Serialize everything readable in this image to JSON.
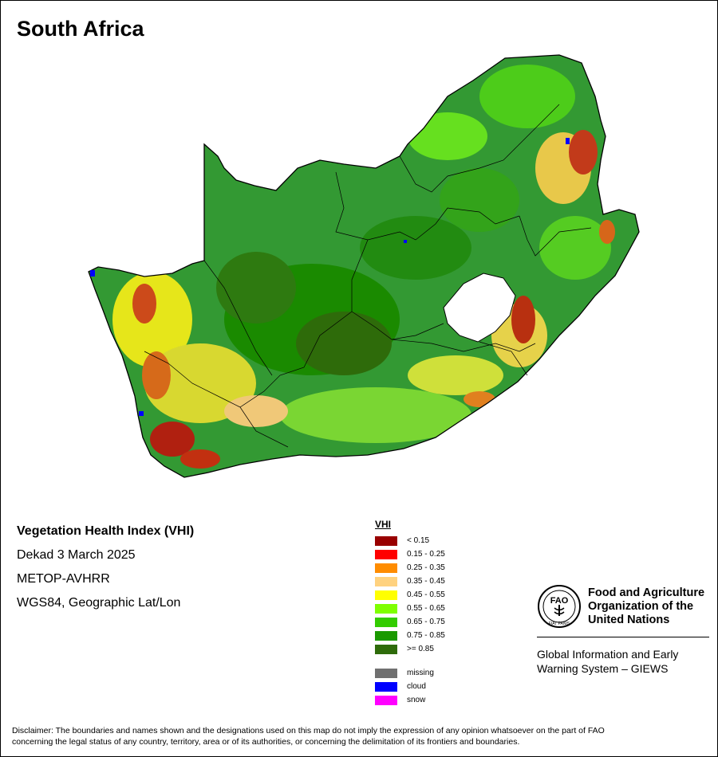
{
  "map": {
    "title": "South Africa",
    "colors": {
      "border": "#000000",
      "lesotho_fill": "#ffffff",
      "dominant_vegetation": "#339933"
    }
  },
  "info": {
    "product": "Vegetation Health Index (VHI)",
    "period": "Dekad 3 March 2025",
    "sensor": "METOP-AVHRR",
    "projection": "WGS84, Geographic Lat/Lon"
  },
  "legend": {
    "title": "VHI",
    "classes": [
      {
        "label": "< 0.15",
        "color": "#990000"
      },
      {
        "label": "0.15 - 0.25",
        "color": "#ff0000"
      },
      {
        "label": "0.25 - 0.35",
        "color": "#ff8c00"
      },
      {
        "label": "0.35 - 0.45",
        "color": "#ffd27f"
      },
      {
        "label": "0.45 - 0.55",
        "color": "#ffff00"
      },
      {
        "label": "0.55 - 0.65",
        "color": "#7fff00"
      },
      {
        "label": "0.65 - 0.75",
        "color": "#33cc00"
      },
      {
        "label": "0.75 - 0.85",
        "color": "#1a9900"
      },
      {
        "label": ">= 0.85",
        "color": "#2e6b0a"
      }
    ],
    "special": [
      {
        "label": "missing",
        "color": "#707070"
      },
      {
        "label": "cloud",
        "color": "#0000ff"
      },
      {
        "label": "snow",
        "color": "#ff00ff"
      }
    ]
  },
  "org": {
    "name_line1": "Food and Agriculture",
    "name_line2": "Organization of the",
    "name_line3": "United Nations",
    "logo_text": "FAO",
    "logo_motto": "FIAT PANIS",
    "giews_line1": "Global Information and Early",
    "giews_line2": "Warning System – GIEWS"
  },
  "disclaimer": {
    "line1": "Disclaimer: The boundaries and names shown and the designations used on this map do not imply the expression of any opinion whatsoever on the part of FAO",
    "line2": "concerning the legal status of any country, territory, area or of its authorities, or concerning the delimitation of its frontiers and boundaries."
  }
}
